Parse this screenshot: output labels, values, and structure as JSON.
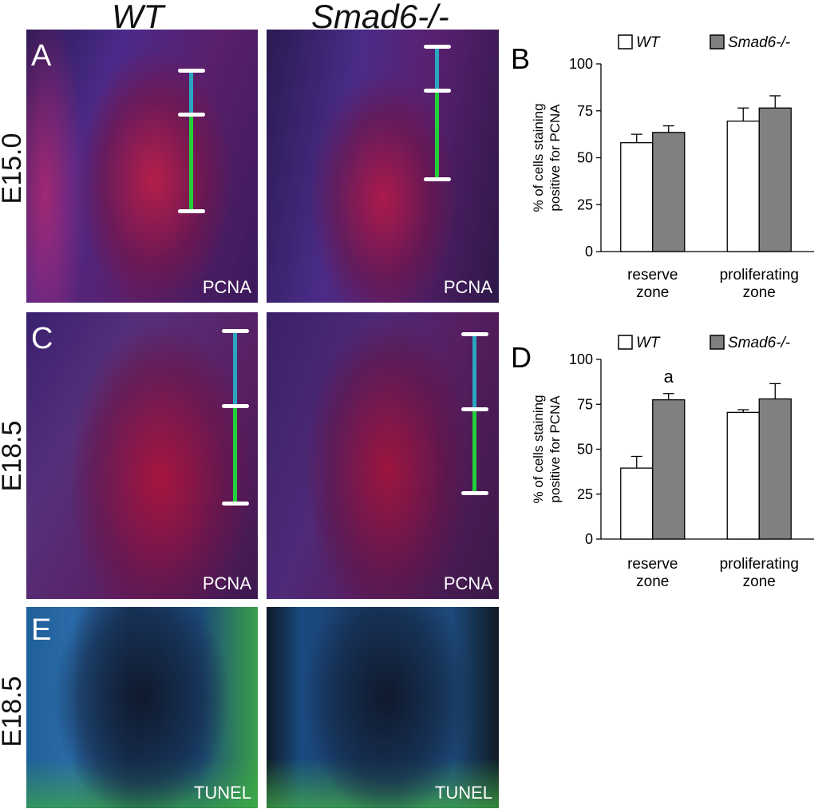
{
  "columns": [
    "WT",
    "Smad6-/-"
  ],
  "rows": [
    "E15.0",
    "E18.5",
    "E18.5"
  ],
  "panels": {
    "A": {
      "letter": "A",
      "stain": "PCNA"
    },
    "A2": {
      "stain": "PCNA"
    },
    "C": {
      "letter": "C",
      "stain": "PCNA"
    },
    "C2": {
      "stain": "PCNA"
    },
    "E": {
      "letter": "E",
      "stain": "TUNEL"
    },
    "E2": {
      "stain": "TUNEL"
    }
  },
  "colors": {
    "wt": "#ffffff",
    "ko": "#808080",
    "reserve_bar": "#2aa7c0",
    "prolif_bar": "#22d13a"
  },
  "chart_data": [
    {
      "type": "bar",
      "panel": "B",
      "legend": [
        "WT",
        "Smad6-/-"
      ],
      "categories": [
        "reserve zone",
        "proliferating zone"
      ],
      "category_lines": [
        [
          "reserve",
          "zone"
        ],
        [
          "proliferating",
          "zone"
        ]
      ],
      "series": [
        {
          "name": "WT",
          "values": [
            58,
            69.5
          ],
          "errors": [
            4.5,
            7
          ]
        },
        {
          "name": "Smad6-/-",
          "values": [
            63.5,
            76.5
          ],
          "errors": [
            3.5,
            6.5
          ]
        }
      ],
      "ylabel_lines": [
        "% of cells staining",
        "positive for PCNA"
      ],
      "ylim": [
        0,
        100
      ],
      "yticks": [
        0,
        25,
        50,
        75,
        100
      ],
      "annotations": []
    },
    {
      "type": "bar",
      "panel": "D",
      "legend": [
        "WT",
        "Smad6-/-"
      ],
      "categories": [
        "reserve zone",
        "proliferating zone"
      ],
      "category_lines": [
        [
          "reserve",
          "zone"
        ],
        [
          "proliferating",
          "zone"
        ]
      ],
      "series": [
        {
          "name": "WT",
          "values": [
            39.5,
            70.5
          ],
          "errors": [
            6.5,
            1.5
          ]
        },
        {
          "name": "Smad6-/-",
          "values": [
            77.5,
            78
          ],
          "errors": [
            3.5,
            8.5
          ]
        }
      ],
      "ylabel_lines": [
        "% of cells staining",
        "positive for PCNA"
      ],
      "ylim": [
        0,
        100
      ],
      "yticks": [
        0,
        25,
        50,
        75,
        100
      ],
      "annotations": [
        {
          "text": "a",
          "category": 0,
          "series": 1
        }
      ]
    }
  ]
}
